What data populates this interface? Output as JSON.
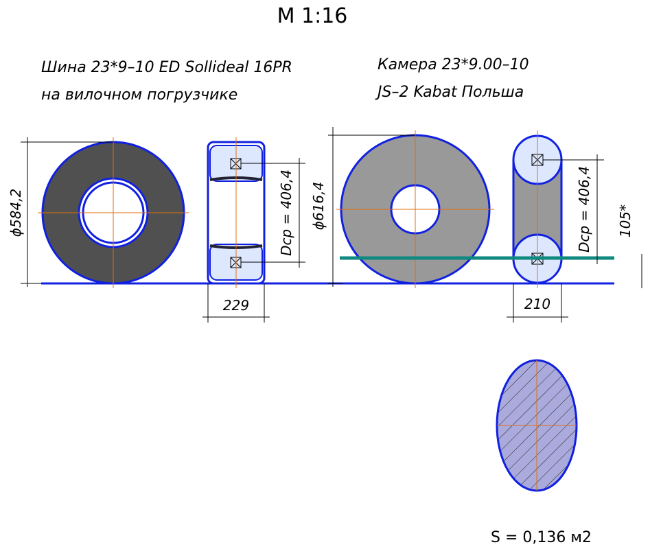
{
  "header": {
    "title": "М 1:16"
  },
  "tire": {
    "line1": "Шина 23*9–10 ED Sollideal 16PR",
    "line2": "на вилочном погрузчике",
    "diameter": "ϕ584,2",
    "mean_diameter": "Dср = 406,4",
    "width": "229"
  },
  "tube": {
    "line1": "Камера 23*9.00–10",
    "line2": "JS–2 Kabat Польша",
    "diameter": "ϕ616,4",
    "mean_diameter": "Dср = 406,4",
    "height": "105*",
    "width": "210"
  },
  "section": {
    "area": "S = 0,136 м2"
  }
}
